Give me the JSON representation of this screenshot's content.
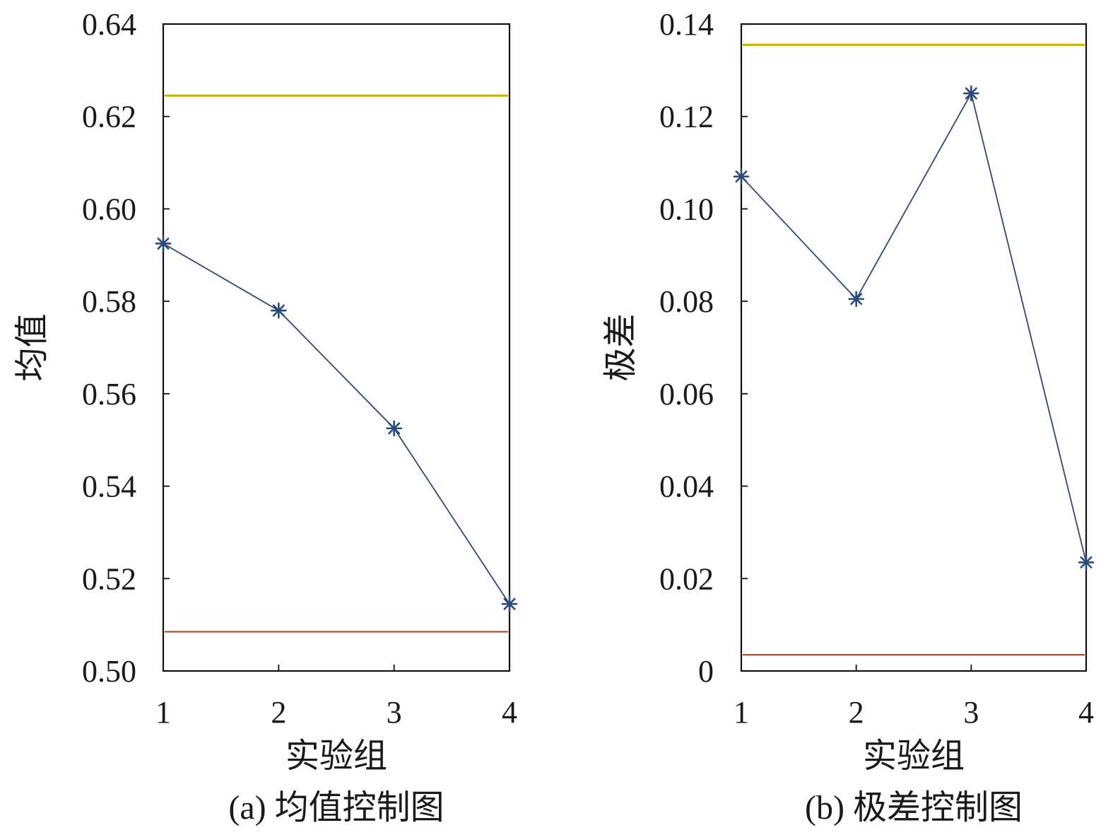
{
  "chart_data": [
    {
      "type": "line",
      "caption": "(a) 均值控制图",
      "xlabel": "实验组",
      "ylabel": "均值",
      "categories": [
        "1",
        "2",
        "3",
        "4"
      ],
      "x": [
        1,
        2,
        3,
        4
      ],
      "y": [
        0.5925,
        0.578,
        0.5525,
        0.5145
      ],
      "xlim": [
        1,
        4
      ],
      "ylim": [
        0.5,
        0.64
      ],
      "yticks": [
        "0.50",
        "0.52",
        "0.54",
        "0.56",
        "0.58",
        "0.60",
        "0.62",
        "0.64"
      ],
      "upper_limit": 0.6245,
      "lower_limit": 0.5085,
      "marker": "asterisk",
      "colors": {
        "series": "#2b4a7c",
        "upper_limit": "#c8b400",
        "lower_limit": "#b03a1a"
      },
      "grid": false
    },
    {
      "type": "line",
      "caption": "(b) 极差控制图",
      "xlabel": "实验组",
      "ylabel": "极差",
      "categories": [
        "1",
        "2",
        "3",
        "4"
      ],
      "x": [
        1,
        2,
        3,
        4
      ],
      "y": [
        0.107,
        0.0805,
        0.125,
        0.0235
      ],
      "xlim": [
        1,
        4
      ],
      "ylim": [
        0,
        0.14
      ],
      "yticks": [
        "0",
        "0.02",
        "0.04",
        "0.06",
        "0.08",
        "0.10",
        "0.12",
        "0.14"
      ],
      "upper_limit": 0.1355,
      "lower_limit": 0.0035,
      "marker": "asterisk",
      "colors": {
        "series": "#2b4a7c",
        "upper_limit": "#c8b400",
        "lower_limit": "#b03a1a"
      },
      "grid": false
    }
  ]
}
